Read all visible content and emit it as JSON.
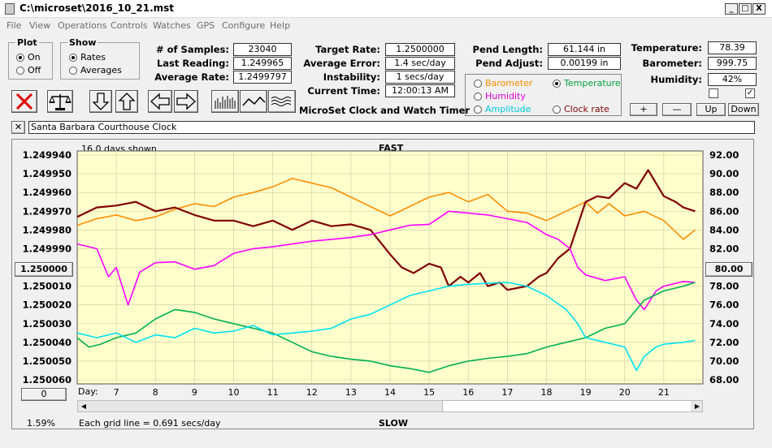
{
  "window": {
    "title": "C:\\microset\\2016_10_21.mst",
    "min": "_",
    "max": "□",
    "close": "X"
  },
  "menu": [
    "File",
    "View",
    "Operations",
    "Controls",
    "Watches",
    "GPS",
    "Configure",
    "Help"
  ],
  "plot": {
    "legend": "Plot",
    "on": "On",
    "off": "Off",
    "selected": "on"
  },
  "show": {
    "legend": "Show",
    "rates": "Rates",
    "averages": "Averages",
    "selected": "rates"
  },
  "stats": {
    "samples_label": "# of Samples:",
    "samples": "23040",
    "last_label": "Last Reading:",
    "last": "1.249965",
    "avg_rate_label": "Average Rate:",
    "avg_rate": "1.2499797",
    "target_label": "Target Rate:",
    "target": "1.2500000",
    "avg_err_label": "Average Error:",
    "avg_err": "1.4 sec/day",
    "instab_label": "Instability:",
    "instab": "1 secs/day",
    "time_label": "Current Time:",
    "time": "12:00:13 AM",
    "pend_len_label": "Pend Length:",
    "pend_len": "61.144 in",
    "pend_adj_label": "Pend Adjust:",
    "pend_adj": "0.00199 in",
    "temp_label": "Temperature:",
    "temp": "78.39",
    "baro_label": "Barometer:",
    "baro": "999.75",
    "hum_label": "Humidity:",
    "hum": "42%"
  },
  "app_title": "MicroSet Clock and Watch Timer",
  "sensor_options": {
    "barometer": "Barometer",
    "temperature": "Temperature",
    "humidity": "Humidity",
    "amplitude": "Amplitude",
    "clock_rate": "Clock rate",
    "selected": "temperature"
  },
  "buttons": {
    "plus": "+",
    "minus": "—",
    "up": "Up",
    "down": "Down",
    "left_zero": "0",
    "left_center": "1.250000",
    "right_center": "80.00"
  },
  "clock_name": "Santa Barbara Courthouse Clock",
  "chart_header": {
    "days_shown": "16.0 days shown",
    "fast": "FAST",
    "slow": "SLOW",
    "grid_note": "Each grid line = 0.691 secs/day",
    "percent": "1.59%",
    "day_prefix": "Day:"
  },
  "colors": {
    "rate": "#800000",
    "temperature": "#00b050",
    "humidity": "#ff00ff",
    "barometer": "#ff8c00",
    "amplitude": "#00e0f0",
    "plot_bg": "#ffffcc",
    "close_red": "#e00000"
  },
  "chart_data": {
    "type": "line",
    "x_ticks": [
      7,
      8,
      9,
      10,
      11,
      12,
      13,
      14,
      15,
      16,
      17,
      18,
      19,
      20,
      21
    ],
    "left_ticks": [
      "1.249940",
      "1.249950",
      "1.249960",
      "1.249970",
      "1.249980",
      "1.249990",
      "1.250000",
      "1.250010",
      "1.250020",
      "1.250030",
      "1.250040",
      "1.250050",
      "1.250060"
    ],
    "right_ticks": [
      "92.00",
      "90.00",
      "88.00",
      "86.00",
      "84.00",
      "82.00",
      "80.00",
      "78.00",
      "76.00",
      "74.00",
      "72.00",
      "70.00",
      "68.00"
    ],
    "left_range": [
      1.24994,
      1.25006
    ],
    "right_range": [
      68,
      92
    ],
    "x_range": [
      6.0,
      22.0
    ],
    "series": [
      {
        "key": "barometer",
        "x": [
          6.0,
          6.5,
          7.0,
          7.5,
          8.0,
          8.5,
          9.0,
          9.5,
          10.0,
          10.5,
          11.0,
          11.5,
          12.0,
          12.5,
          13.0,
          13.5,
          14.0,
          14.5,
          15.0,
          15.5,
          16.0,
          16.5,
          17.0,
          17.5,
          18.0,
          18.5,
          19.0,
          19.3,
          19.6,
          20.0,
          20.5,
          21.0,
          21.5,
          21.8
        ],
        "y": [
          84.5,
          85.2,
          85.6,
          85.0,
          85.4,
          86.2,
          86.8,
          86.5,
          87.5,
          88.0,
          88.6,
          89.5,
          89.0,
          88.5,
          87.5,
          86.5,
          85.5,
          86.5,
          87.5,
          88.0,
          87.0,
          87.8,
          86.0,
          85.8,
          85.0,
          86.0,
          87.0,
          85.8,
          86.8,
          85.5,
          86.0,
          85.0,
          83.0,
          84.0
        ]
      },
      {
        "key": "rate",
        "x": [
          6.0,
          6.5,
          7.0,
          7.5,
          8.0,
          8.5,
          9.0,
          9.5,
          10.0,
          10.5,
          11.0,
          11.5,
          12.0,
          12.5,
          13.0,
          13.5,
          14.0,
          14.3,
          14.6,
          15.0,
          15.3,
          15.5,
          15.8,
          16.0,
          16.3,
          16.5,
          16.8,
          17.0,
          17.5,
          17.8,
          18.0,
          18.3,
          18.6,
          19.0,
          19.3,
          19.6,
          20.0,
          20.3,
          20.6,
          21.0,
          21.3,
          21.5,
          21.8
        ],
        "y": [
          1.249973,
          1.249968,
          1.249967,
          1.249965,
          1.24997,
          1.249968,
          1.249972,
          1.249975,
          1.249975,
          1.249978,
          1.249975,
          1.24998,
          1.249975,
          1.249978,
          1.249977,
          1.24998,
          1.249993,
          1.25,
          1.250003,
          1.249998,
          1.25,
          1.25001,
          1.250005,
          1.250008,
          1.250003,
          1.25001,
          1.250008,
          1.250012,
          1.25001,
          1.250005,
          1.250003,
          1.249995,
          1.24999,
          1.249965,
          1.249962,
          1.249963,
          1.249955,
          1.249958,
          1.249948,
          1.249962,
          1.249965,
          1.249968,
          1.24997
        ]
      },
      {
        "key": "humidity",
        "x": [
          6.0,
          6.5,
          6.8,
          7.0,
          7.3,
          7.6,
          8.0,
          8.5,
          9.0,
          9.5,
          10.0,
          10.5,
          11.0,
          11.5,
          12.0,
          12.5,
          13.0,
          13.5,
          14.0,
          14.5,
          15.0,
          15.5,
          16.0,
          16.5,
          17.0,
          17.5,
          18.0,
          18.3,
          18.6,
          18.8,
          19.0,
          19.5,
          20.0,
          20.3,
          20.5,
          20.8,
          21.0,
          21.5,
          21.8
        ],
        "y": [
          82.5,
          82.0,
          79.0,
          80.0,
          76.0,
          79.5,
          80.5,
          80.6,
          79.8,
          80.2,
          81.5,
          82.0,
          82.2,
          82.5,
          82.8,
          83.0,
          83.2,
          83.5,
          84.0,
          84.5,
          84.6,
          86.0,
          85.8,
          85.6,
          85.2,
          84.8,
          83.5,
          83.0,
          82.0,
          80.0,
          79.2,
          78.6,
          79.0,
          76.5,
          75.5,
          77.5,
          78.0,
          78.5,
          78.4
        ]
      },
      {
        "key": "temperature",
        "x": [
          6.0,
          6.3,
          6.6,
          7.0,
          7.5,
          8.0,
          8.5,
          9.0,
          9.5,
          10.0,
          10.5,
          11.0,
          11.5,
          12.0,
          12.5,
          13.0,
          13.5,
          14.0,
          14.5,
          15.0,
          15.5,
          16.0,
          16.5,
          17.0,
          17.5,
          18.0,
          18.5,
          19.0,
          19.5,
          20.0,
          20.5,
          21.0,
          21.5,
          21.8
        ],
        "y": [
          72.5,
          71.5,
          71.8,
          72.5,
          73.0,
          74.5,
          75.5,
          75.2,
          74.5,
          74.0,
          73.5,
          73.0,
          72.0,
          71.0,
          70.5,
          70.2,
          70.0,
          69.5,
          69.2,
          68.8,
          69.5,
          70.0,
          70.3,
          70.5,
          70.8,
          71.5,
          72.0,
          72.5,
          73.5,
          74.0,
          76.5,
          77.5,
          78.0,
          78.4
        ]
      },
      {
        "key": "amplitude",
        "x": [
          6.0,
          6.5,
          7.0,
          7.5,
          8.0,
          8.5,
          9.0,
          9.5,
          10.0,
          10.5,
          11.0,
          11.5,
          12.0,
          12.5,
          13.0,
          13.5,
          14.0,
          14.5,
          15.0,
          15.5,
          16.0,
          16.5,
          17.0,
          17.5,
          18.0,
          18.5,
          18.8,
          19.0,
          19.5,
          20.0,
          20.3,
          20.5,
          20.8,
          21.0,
          21.5,
          21.8
        ],
        "y": [
          73.0,
          72.5,
          73.0,
          72.0,
          72.8,
          72.5,
          73.5,
          73.0,
          73.2,
          73.8,
          72.8,
          73.0,
          73.2,
          73.5,
          74.5,
          75.0,
          76.0,
          77.0,
          77.5,
          78.0,
          78.2,
          78.3,
          78.4,
          78.0,
          77.0,
          75.5,
          74.0,
          72.5,
          72.0,
          71.5,
          69.0,
          70.5,
          71.5,
          71.8,
          72.0,
          72.2
        ]
      }
    ]
  }
}
